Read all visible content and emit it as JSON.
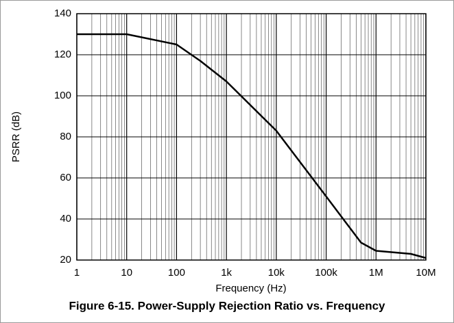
{
  "chart_data": {
    "type": "line",
    "caption": "Figure 6-15. Power-Supply Rejection Ratio vs. Frequency",
    "x_label": "Frequency (Hz)",
    "y_label": "PSRR (dB)",
    "xscale": "log",
    "x": [
      1,
      10,
      100,
      300,
      1000,
      10000,
      100000,
      500000,
      1000000,
      5000000,
      10000000
    ],
    "series": [
      {
        "name": "PSRR",
        "color": "#000000",
        "values": [
          130,
          130,
          125,
          117,
          107,
          83,
          51,
          28.5,
          24.5,
          23,
          21
        ]
      }
    ],
    "xlim": [
      1,
      10000000
    ],
    "ylim": [
      20,
      140
    ],
    "xticks": [
      1,
      10,
      100,
      {
        "value": 1000,
        "label": "1k"
      },
      {
        "value": 10000,
        "label": "10k"
      },
      {
        "value": 100000,
        "label": "100k"
      },
      {
        "value": 1000000,
        "label": "1M"
      },
      {
        "value": 10000000,
        "label": "10M"
      }
    ],
    "xminorticks": [
      2,
      3,
      4,
      5,
      6,
      7,
      8,
      9,
      20,
      30,
      40,
      50,
      60,
      70,
      80,
      90,
      200,
      300,
      400,
      500,
      600,
      700,
      800,
      900,
      2000,
      3000,
      4000,
      5000,
      6000,
      7000,
      8000,
      9000,
      20000,
      30000,
      40000,
      50000,
      60000,
      70000,
      80000,
      90000,
      200000,
      300000,
      400000,
      500000,
      600000,
      700000,
      800000,
      900000,
      2000000,
      3000000,
      4000000,
      5000000,
      6000000,
      7000000,
      8000000,
      9000000
    ],
    "yticks": [
      20,
      40,
      60,
      80,
      100,
      120,
      140
    ],
    "grid": true
  }
}
